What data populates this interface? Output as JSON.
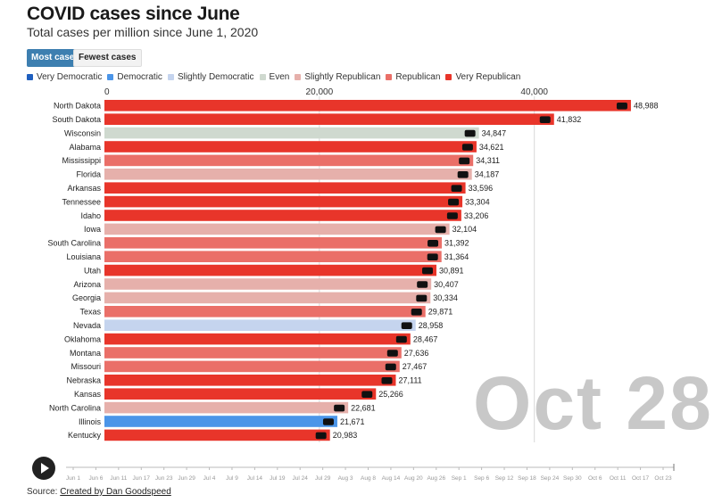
{
  "title": "COVID cases since June",
  "subtitle": "Total cases per million since June 1, 2020",
  "buttons": {
    "most": "Most cases",
    "fewest": "Fewest cases"
  },
  "legend": [
    {
      "label": "Very Democratic",
      "color": "#1f5fbf"
    },
    {
      "label": "Democratic",
      "color": "#4b95e8"
    },
    {
      "label": "Slightly Democratic",
      "color": "#c5d4ee"
    },
    {
      "label": "Even",
      "color": "#cfd9cf"
    },
    {
      "label": "Slightly Republican",
      "color": "#e6b0ab"
    },
    {
      "label": "Republican",
      "color": "#ea6f68"
    },
    {
      "label": "Very Republican",
      "color": "#e8352a"
    }
  ],
  "date_label": "Oct 28",
  "source_prefix": "Source: ",
  "source_link": "Created by Dan Goodspeed",
  "timeline_ticks": [
    "Jun 1",
    "Jun 6",
    "Jun 11",
    "Jun 17",
    "Jun 23",
    "Jun 29",
    "Jul 4",
    "Jul 9",
    "Jul 14",
    "Jul 19",
    "Jul 24",
    "Jul 29",
    "Aug 3",
    "Aug 8",
    "Aug 14",
    "Aug 20",
    "Aug 26",
    "Sep 1",
    "Sep 6",
    "Sep 12",
    "Sep 18",
    "Sep 24",
    "Sep 30",
    "Oct 6",
    "Oct 11",
    "Oct 17",
    "Oct 23"
  ],
  "chart_data": {
    "type": "bar",
    "orientation": "horizontal",
    "xlim": [
      0,
      50000
    ],
    "xticks": [
      "0",
      "20,000",
      "40,000"
    ],
    "xtick_values": [
      0,
      20000,
      40000
    ],
    "categories": [
      "North Dakota",
      "South Dakota",
      "Wisconsin",
      "Alabama",
      "Mississippi",
      "Florida",
      "Arkansas",
      "Tennessee",
      "Idaho",
      "Iowa",
      "South Carolina",
      "Louisiana",
      "Utah",
      "Arizona",
      "Georgia",
      "Texas",
      "Nevada",
      "Oklahoma",
      "Montana",
      "Missouri",
      "Nebraska",
      "Kansas",
      "North Carolina",
      "Illinois",
      "Kentucky"
    ],
    "values": [
      48988,
      41832,
      34847,
      34621,
      34311,
      34187,
      33596,
      33304,
      33206,
      32104,
      31392,
      31364,
      30891,
      30407,
      30334,
      29871,
      28958,
      28467,
      27636,
      27467,
      27111,
      25266,
      22681,
      21671,
      20983
    ],
    "value_labels": [
      "48,988",
      "41,832",
      "34,847",
      "34,621",
      "34,311",
      "34,187",
      "33,596",
      "33,304",
      "33,206",
      "32,104",
      "31,392",
      "31,364",
      "30,891",
      "30,407",
      "30,334",
      "29,871",
      "28,958",
      "28,467",
      "27,636",
      "27,467",
      "27,111",
      "25,266",
      "22,681",
      "21,671",
      "20,983"
    ],
    "leaning": [
      "Very Republican",
      "Very Republican",
      "Even",
      "Very Republican",
      "Republican",
      "Slightly Republican",
      "Very Republican",
      "Very Republican",
      "Very Republican",
      "Slightly Republican",
      "Republican",
      "Republican",
      "Very Republican",
      "Slightly Republican",
      "Slightly Republican",
      "Republican",
      "Slightly Democratic",
      "Very Republican",
      "Republican",
      "Republican",
      "Very Republican",
      "Very Republican",
      "Slightly Republican",
      "Democratic",
      "Very Republican"
    ],
    "grid": true
  }
}
